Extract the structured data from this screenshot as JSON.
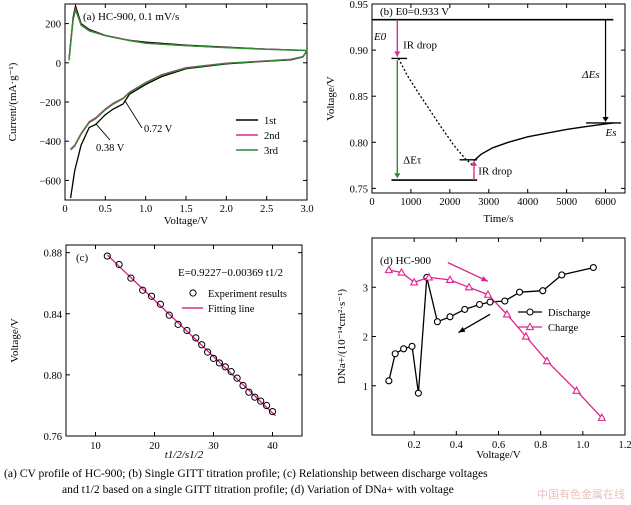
{
  "caption": {
    "line1": "(a) CV profile of HC-900; (b) Single GITT titration profile; (c) Relationship between discharge voltages",
    "line2": "and t1/2 based on a single GITT titration profile; (d) Variation of DNa+ with voltage"
  },
  "watermark": "中国有色金属在线",
  "colors": {
    "black": "#000000",
    "magenta": "#d6308e",
    "green": "#2e8b2e",
    "pink": "#e0218a"
  },
  "chart_data": [
    {
      "type": "line",
      "panel": "(a)",
      "annotation": "HC-900, 0.1 mV/s",
      "xlabel": "Voltage/V",
      "ylabel": "Current/(mA·g⁻¹)",
      "xlim": [
        0,
        3.0
      ],
      "ylim": [
        -700,
        300
      ],
      "xticks": [
        "0",
        "0.5",
        "1.0",
        "1.5",
        "2.0",
        "2.5",
        "3.0"
      ],
      "yticks": [
        "200",
        "0",
        "−200",
        "−400",
        "−600"
      ],
      "legend_position": "right",
      "peak_labels": [
        "0.72 V",
        "0.38 V"
      ],
      "series": [
        {
          "name": "1st",
          "color": "#000000",
          "upper": [
            [
              0.05,
              20
            ],
            [
              0.1,
              230
            ],
            [
              0.13,
              290
            ],
            [
              0.2,
              200
            ],
            [
              0.3,
              170
            ],
            [
              0.5,
              140
            ],
            [
              0.8,
              115
            ],
            [
              1.0,
              105
            ],
            [
              1.5,
              90
            ],
            [
              2.0,
              80
            ],
            [
              2.5,
              70
            ],
            [
              2.9,
              65
            ],
            [
              3.0,
              62
            ]
          ],
          "lower": [
            [
              3.0,
              62
            ],
            [
              2.95,
              30
            ],
            [
              2.8,
              15
            ],
            [
              2.5,
              8
            ],
            [
              2.0,
              -5
            ],
            [
              1.5,
              -30
            ],
            [
              1.2,
              -70
            ],
            [
              1.0,
              -110
            ],
            [
              0.8,
              -160
            ],
            [
              0.72,
              -210
            ],
            [
              0.6,
              -235
            ],
            [
              0.5,
              -265
            ],
            [
              0.38,
              -315
            ],
            [
              0.3,
              -330
            ],
            [
              0.2,
              -420
            ],
            [
              0.12,
              -550
            ],
            [
              0.07,
              -690
            ]
          ]
        },
        {
          "name": "2nd",
          "color": "#d6308e",
          "upper": [
            [
              0.05,
              15
            ],
            [
              0.1,
              220
            ],
            [
              0.13,
              275
            ],
            [
              0.2,
              195
            ],
            [
              0.3,
              165
            ],
            [
              0.5,
              140
            ],
            [
              0.8,
              115
            ],
            [
              1.0,
              100
            ],
            [
              1.5,
              88
            ],
            [
              2.0,
              78
            ],
            [
              2.5,
              70
            ],
            [
              2.9,
              65
            ],
            [
              3.0,
              62
            ]
          ],
          "lower": [
            [
              3.0,
              62
            ],
            [
              2.95,
              32
            ],
            [
              2.8,
              18
            ],
            [
              2.5,
              10
            ],
            [
              2.0,
              -2
            ],
            [
              1.5,
              -25
            ],
            [
              1.2,
              -60
            ],
            [
              1.0,
              -100
            ],
            [
              0.8,
              -150
            ],
            [
              0.72,
              -180
            ],
            [
              0.6,
              -205
            ],
            [
              0.5,
              -235
            ],
            [
              0.38,
              -280
            ],
            [
              0.3,
              -300
            ],
            [
              0.2,
              -360
            ],
            [
              0.12,
              -420
            ],
            [
              0.07,
              -440
            ]
          ]
        },
        {
          "name": "3rd",
          "color": "#2e8b2e",
          "upper": [
            [
              0.05,
              12
            ],
            [
              0.1,
              215
            ],
            [
              0.13,
              270
            ],
            [
              0.2,
              192
            ],
            [
              0.3,
              163
            ],
            [
              0.5,
              138
            ],
            [
              0.8,
              113
            ],
            [
              1.0,
              100
            ],
            [
              1.5,
              87
            ],
            [
              2.0,
              77
            ],
            [
              2.5,
              69
            ],
            [
              2.9,
              64
            ],
            [
              3.0,
              62
            ]
          ],
          "lower": [
            [
              3.0,
              62
            ],
            [
              2.95,
              31
            ],
            [
              2.8,
              17
            ],
            [
              2.5,
              9
            ],
            [
              2.0,
              -3
            ],
            [
              1.5,
              -27
            ],
            [
              1.2,
              -63
            ],
            [
              1.0,
              -103
            ],
            [
              0.8,
              -153
            ],
            [
              0.72,
              -183
            ],
            [
              0.6,
              -210
            ],
            [
              0.5,
              -240
            ],
            [
              0.38,
              -285
            ],
            [
              0.3,
              -305
            ],
            [
              0.2,
              -365
            ],
            [
              0.12,
              -425
            ],
            [
              0.07,
              -445
            ]
          ]
        }
      ]
    },
    {
      "type": "line",
      "panel": "(b)",
      "xlabel": "Time/s",
      "ylabel": "Voltage/V",
      "xlim": [
        0,
        6500
      ],
      "ylim": [
        0.745,
        0.95
      ],
      "xticks": [
        "0",
        "1000",
        "2000",
        "3000",
        "4000",
        "5000",
        "6000"
      ],
      "yticks": [
        "0.95",
        "0.90",
        "0.85",
        "0.80",
        "0.75"
      ],
      "labels": {
        "e0_top": "E0=0.933 V",
        "e0": "E0",
        "ir_drop_1": "IR drop",
        "ir_drop_2": "IR drop",
        "delta_es": "ΔEs",
        "es": "Es",
        "delta_et": "ΔEτ"
      },
      "relaxation": [
        [
          2620,
          0.78
        ],
        [
          2800,
          0.787
        ],
        [
          3100,
          0.794
        ],
        [
          3500,
          0.8
        ],
        [
          4000,
          0.806
        ],
        [
          4500,
          0.81
        ],
        [
          5000,
          0.814
        ],
        [
          5500,
          0.817
        ],
        [
          6000,
          0.82
        ],
        [
          6200,
          0.821
        ]
      ],
      "titration": [
        [
          680,
          0.891
        ],
        [
          900,
          0.873
        ],
        [
          1200,
          0.853
        ],
        [
          1500,
          0.834
        ],
        [
          1800,
          0.815
        ],
        [
          2100,
          0.797
        ],
        [
          2400,
          0.782
        ],
        [
          2620,
          0.774
        ]
      ]
    },
    {
      "type": "scatter",
      "panel": "(c)",
      "xlabel": "t1/2/s1/2",
      "ylabel": "Voltage/V",
      "xlim": [
        5,
        45
      ],
      "ylim": [
        0.76,
        0.885
      ],
      "xticks": [
        "10",
        "20",
        "30",
        "40"
      ],
      "yticks": [
        "0.88",
        "0.84",
        "0.80",
        "0.76"
      ],
      "equation": "E=0.9227−0.00369 t1/2",
      "legend": [
        "Experiment results",
        "Fitting line"
      ],
      "fit": {
        "intercept": 0.9227,
        "slope": -0.00369,
        "x_range": [
          12,
          40.5
        ]
      },
      "points_x": [
        12,
        14,
        16,
        18,
        19.5,
        21,
        22.5,
        24,
        25.5,
        27,
        28,
        29,
        30,
        31,
        32,
        33,
        34,
        35,
        36,
        37,
        38,
        39,
        40
      ]
    },
    {
      "type": "line",
      "panel": "(d)",
      "annotation": "HC-900",
      "xlabel": "Voltage/V",
      "ylabel": "DNa+/(10⁻¹⁴cm²·s⁻¹)",
      "xlim": [
        0,
        1.2
      ],
      "ylim": [
        0,
        4
      ],
      "xticks": [
        "0.2",
        "0.4",
        "0.6",
        "0.8",
        "1.0",
        "1.2"
      ],
      "yticks": [
        "3",
        "2",
        "1"
      ],
      "legend_position": "right",
      "series": [
        {
          "name": "Discharge",
          "color": "#000000",
          "marker": "circle",
          "points": [
            [
              0.08,
              1.1
            ],
            [
              0.11,
              1.65
            ],
            [
              0.15,
              1.75
            ],
            [
              0.19,
              1.8
            ],
            [
              0.22,
              0.85
            ],
            [
              0.26,
              3.2
            ],
            [
              0.31,
              2.3
            ],
            [
              0.37,
              2.4
            ],
            [
              0.44,
              2.55
            ],
            [
              0.51,
              2.65
            ],
            [
              0.56,
              2.7
            ],
            [
              0.63,
              2.72
            ],
            [
              0.7,
              2.9
            ],
            [
              0.81,
              2.93
            ],
            [
              0.9,
              3.25
            ],
            [
              1.05,
              3.4
            ]
          ]
        },
        {
          "name": "Charge",
          "color": "#e0218a",
          "marker": "triangle",
          "points": [
            [
              0.08,
              3.35
            ],
            [
              0.14,
              3.3
            ],
            [
              0.2,
              3.1
            ],
            [
              0.27,
              3.2
            ],
            [
              0.37,
              3.15
            ],
            [
              0.46,
              3.0
            ],
            [
              0.55,
              2.85
            ],
            [
              0.64,
              2.45
            ],
            [
              0.73,
              2.0
            ],
            [
              0.83,
              1.5
            ],
            [
              0.97,
              0.9
            ],
            [
              1.09,
              0.35
            ]
          ]
        }
      ]
    }
  ]
}
